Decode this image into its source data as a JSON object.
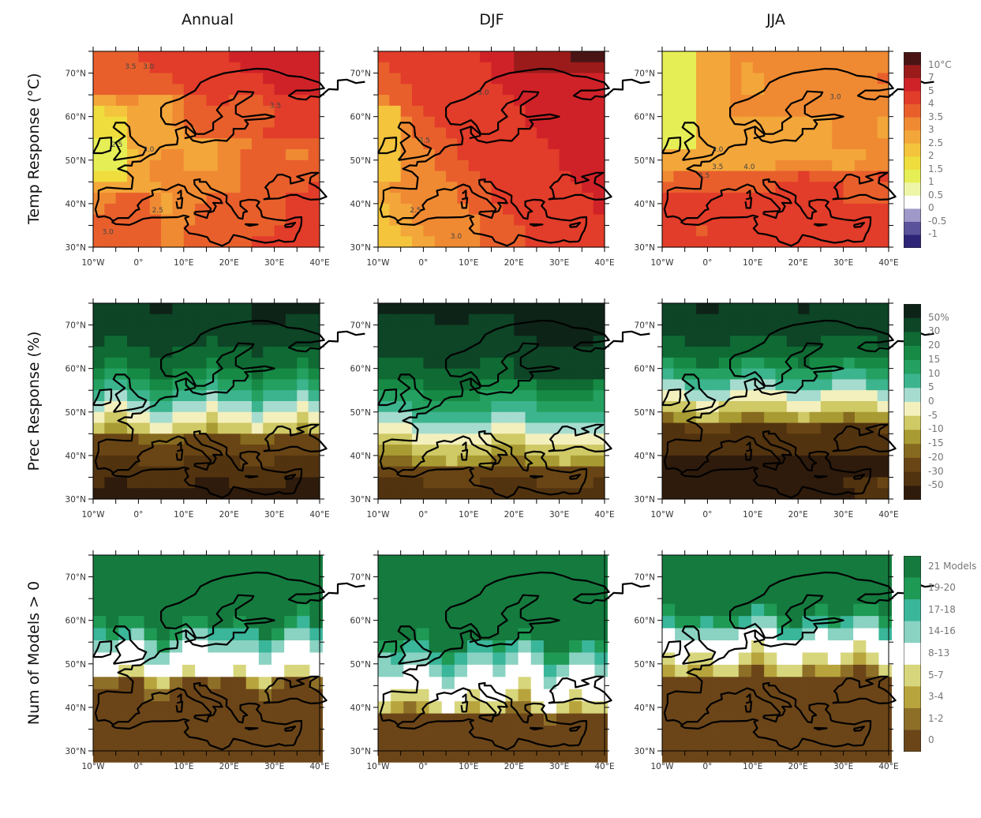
{
  "columns": [
    "Annual",
    "DJF",
    "JJA"
  ],
  "rows": [
    {
      "title": "Temp Response (°C)"
    },
    {
      "title": "Prec Response (%)"
    },
    {
      "title": "Num of Models > 0"
    }
  ],
  "axes": {
    "lon_ticks": [
      "10°W",
      "0°",
      "10°E",
      "20°E",
      "30°E",
      "40°E"
    ],
    "lat_ticks": [
      "70°N",
      "60°N",
      "50°N",
      "40°N",
      "30°N"
    ]
  },
  "legends": [
    {
      "labels": [
        "10°C",
        "7",
        "5",
        "4",
        "3.5",
        "3",
        "2.5",
        "2",
        "1.5",
        "1",
        "0.5",
        "0",
        "-0.5",
        "-1"
      ],
      "colors": [
        "#4a1414",
        "#9b1b1b",
        "#cf2228",
        "#e23c2a",
        "#e85f2c",
        "#ef8a33",
        "#f3a63a",
        "#f3c43c",
        "#eedd3d",
        "#e6ee55",
        "#eef5a6",
        "#ffffff",
        "#9e99c8",
        "#5a529b",
        "#2e2478"
      ]
    },
    {
      "labels": [
        "50%",
        "30",
        "20",
        "15",
        "10",
        "5",
        "0",
        "-5",
        "-10",
        "-15",
        "-20",
        "-30",
        "-50"
      ],
      "colors": [
        "#0e2318",
        "#0d4526",
        "#0f6a33",
        "#168a45",
        "#24a060",
        "#3cb48e",
        "#a6dccf",
        "#f3f0bd",
        "#cfc966",
        "#a99b33",
        "#866a1f",
        "#694515",
        "#52330f",
        "#2e1b0c"
      ]
    },
    {
      "labels": [
        "21 Models",
        "19-20",
        "17-18",
        "14-16",
        "8-13",
        "5-7",
        "3-4",
        "1-2",
        "0"
      ],
      "colors": [
        "#157a3e",
        "#1f9a55",
        "#3ab69a",
        "#8ad2c2",
        "#ffffff",
        "#d8d67c",
        "#b8a43c",
        "#8e6f28",
        "#6b4518"
      ]
    }
  ],
  "contour_labels": {
    "annual_temp": [
      "3.5",
      "3.0",
      "3.5",
      "2.5",
      "3.0",
      "2.5",
      "3.0"
    ],
    "djf_temp": [
      "3.0",
      "3.5",
      "2.5",
      "3.0"
    ],
    "jja_temp": [
      "3.0",
      "3.0",
      "3.5",
      "4.0",
      "2.5"
    ]
  }
}
